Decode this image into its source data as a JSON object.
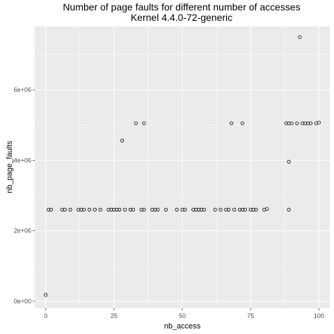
{
  "chart_data": {
    "type": "scatter",
    "title": "Number of page faults for different number of accesses",
    "subtitle": "Kernel 4.4.0-72-generic",
    "xlabel": "nb_access",
    "ylabel": "nb_page_faults",
    "xlim": [
      -4,
      104
    ],
    "ylim": [
      -200000,
      7800000
    ],
    "xticks": [
      0,
      25,
      50,
      75,
      100
    ],
    "xtick_labels": [
      "0",
      "25",
      "50",
      "75",
      "100"
    ],
    "yticks": [
      0,
      2000000,
      4000000,
      6000000
    ],
    "ytick_labels": [
      "0e+00",
      "2e+06",
      "4e+06",
      "6e+06"
    ],
    "grid": true,
    "marker": "open-circle",
    "colors": {
      "panel": "#ebebeb",
      "grid_major": "#ffffff",
      "points": "#000000"
    },
    "points": [
      {
        "x": 0,
        "y": 180000
      },
      {
        "x": 1,
        "y": 2600000
      },
      {
        "x": 2,
        "y": 2600000
      },
      {
        "x": 6,
        "y": 2600000
      },
      {
        "x": 7,
        "y": 2600000
      },
      {
        "x": 9,
        "y": 2600000
      },
      {
        "x": 12,
        "y": 2600000
      },
      {
        "x": 13,
        "y": 2600000
      },
      {
        "x": 14,
        "y": 2600000
      },
      {
        "x": 16,
        "y": 2600000
      },
      {
        "x": 18,
        "y": 2600000
      },
      {
        "x": 20,
        "y": 2600000
      },
      {
        "x": 23,
        "y": 2600000
      },
      {
        "x": 24,
        "y": 2600000
      },
      {
        "x": 25,
        "y": 2600000
      },
      {
        "x": 26,
        "y": 2600000
      },
      {
        "x": 27,
        "y": 2600000
      },
      {
        "x": 29,
        "y": 2600000
      },
      {
        "x": 31,
        "y": 2600000
      },
      {
        "x": 32,
        "y": 2600000
      },
      {
        "x": 35,
        "y": 2600000
      },
      {
        "x": 36,
        "y": 2600000
      },
      {
        "x": 39,
        "y": 2600000
      },
      {
        "x": 40,
        "y": 2600000
      },
      {
        "x": 41,
        "y": 2600000
      },
      {
        "x": 44,
        "y": 2600000
      },
      {
        "x": 48,
        "y": 2600000
      },
      {
        "x": 50,
        "y": 2600000
      },
      {
        "x": 51,
        "y": 2600000
      },
      {
        "x": 54,
        "y": 2600000
      },
      {
        "x": 55,
        "y": 2600000
      },
      {
        "x": 56,
        "y": 2600000
      },
      {
        "x": 57,
        "y": 2600000
      },
      {
        "x": 58,
        "y": 2600000
      },
      {
        "x": 62,
        "y": 2600000
      },
      {
        "x": 64,
        "y": 2600000
      },
      {
        "x": 66,
        "y": 2600000
      },
      {
        "x": 67,
        "y": 2600000
      },
      {
        "x": 69,
        "y": 2600000
      },
      {
        "x": 71,
        "y": 2600000
      },
      {
        "x": 72,
        "y": 2600000
      },
      {
        "x": 73,
        "y": 2600000
      },
      {
        "x": 75,
        "y": 2600000
      },
      {
        "x": 76,
        "y": 2600000
      },
      {
        "x": 77,
        "y": 2600000
      },
      {
        "x": 80,
        "y": 2600000
      },
      {
        "x": 81,
        "y": 2620000
      },
      {
        "x": 89,
        "y": 2600000
      },
      {
        "x": 28,
        "y": 4560000
      },
      {
        "x": 33,
        "y": 5050000
      },
      {
        "x": 36,
        "y": 5050000
      },
      {
        "x": 68,
        "y": 5050000
      },
      {
        "x": 72,
        "y": 5050000
      },
      {
        "x": 88,
        "y": 5050000
      },
      {
        "x": 89,
        "y": 5050000
      },
      {
        "x": 90,
        "y": 5050000
      },
      {
        "x": 92,
        "y": 5050000
      },
      {
        "x": 94,
        "y": 5050000
      },
      {
        "x": 95,
        "y": 5050000
      },
      {
        "x": 96,
        "y": 5050000
      },
      {
        "x": 97,
        "y": 5050000
      },
      {
        "x": 99,
        "y": 5050000
      },
      {
        "x": 100,
        "y": 5070000
      },
      {
        "x": 89,
        "y": 3960000
      },
      {
        "x": 93,
        "y": 7500000
      }
    ]
  }
}
